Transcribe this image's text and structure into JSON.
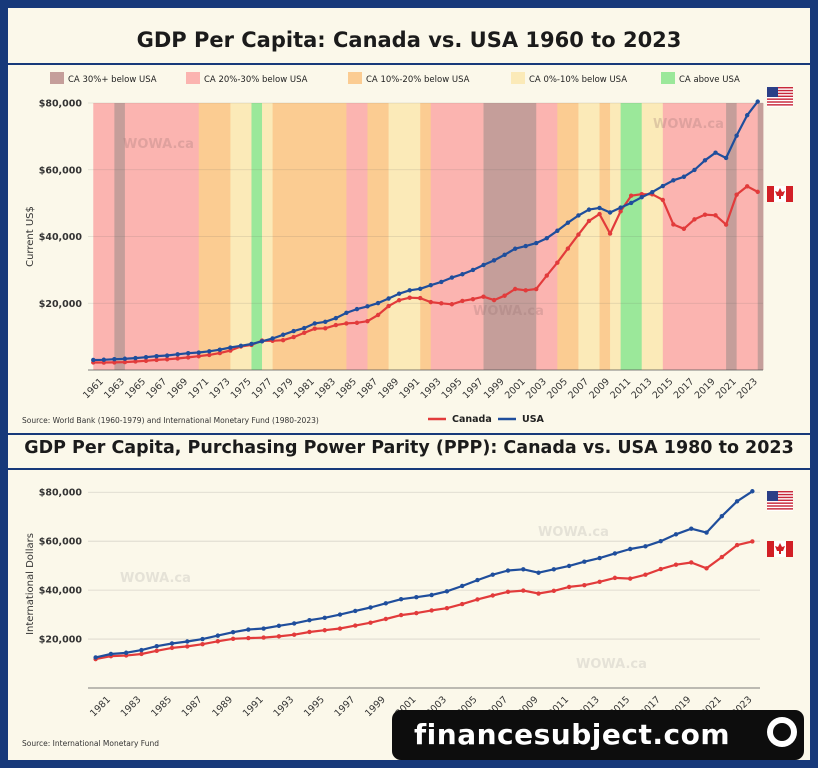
{
  "watermark": "financesubject.com",
  "chart_data": [
    {
      "type": "line",
      "title": "GDP Per Capita: Canada vs. USA 1960 to 2023",
      "ylabel": "Current US$",
      "ylim": [
        0,
        80000
      ],
      "yticks": [
        20000,
        40000,
        60000,
        80000
      ],
      "ytick_labels": [
        "$20,000",
        "$40,000",
        "$60,000",
        "$80,000"
      ],
      "xlim": [
        1960,
        2023
      ],
      "xtick_labels": [
        "1961",
        "1963",
        "1965",
        "1967",
        "1969",
        "1971",
        "1973",
        "1975",
        "1977",
        "1979",
        "1981",
        "1983",
        "1985",
        "1987",
        "1989",
        "1991",
        "1993",
        "1995",
        "1997",
        "1999",
        "2001",
        "2003",
        "2005",
        "2007",
        "2009",
        "2011",
        "2013",
        "2015",
        "2017",
        "2019",
        "2021",
        "2023"
      ],
      "source": "Source: World Bank (1960-1979) and International Monetary Fund (1980-2023)",
      "watermark_text": "WOWA.ca",
      "band_legend": [
        {
          "label": "CA 30%+ below USA",
          "color": "#c59e9a"
        },
        {
          "label": "CA 20%-30% below USA",
          "color": "#fbb4b0"
        },
        {
          "label": "CA 10%-20% below USA",
          "color": "#fbcc92"
        },
        {
          "label": "CA 0%-10% below USA",
          "color": "#fbeab8"
        },
        {
          "label": "CA above USA",
          "color": "#9be89a"
        }
      ],
      "bands": [
        {
          "start": 1960,
          "end": 1962,
          "cat": 1
        },
        {
          "start": 1962,
          "end": 1963,
          "cat": 0
        },
        {
          "start": 1963,
          "end": 1970,
          "cat": 1
        },
        {
          "start": 1970,
          "end": 1973,
          "cat": 2
        },
        {
          "start": 1973,
          "end": 1975,
          "cat": 3
        },
        {
          "start": 1975,
          "end": 1976,
          "cat": 4
        },
        {
          "start": 1976,
          "end": 1977,
          "cat": 3
        },
        {
          "start": 1977,
          "end": 1984,
          "cat": 2
        },
        {
          "start": 1984,
          "end": 1986,
          "cat": 1
        },
        {
          "start": 1986,
          "end": 1988,
          "cat": 2
        },
        {
          "start": 1988,
          "end": 1991,
          "cat": 3
        },
        {
          "start": 1991,
          "end": 1992,
          "cat": 2
        },
        {
          "start": 1992,
          "end": 1997,
          "cat": 1
        },
        {
          "start": 1997,
          "end": 2002,
          "cat": 0
        },
        {
          "start": 2002,
          "end": 2004,
          "cat": 1
        },
        {
          "start": 2004,
          "end": 2006,
          "cat": 2
        },
        {
          "start": 2006,
          "end": 2008,
          "cat": 3
        },
        {
          "start": 2008,
          "end": 2009,
          "cat": 2
        },
        {
          "start": 2009,
          "end": 2010,
          "cat": 3
        },
        {
          "start": 2010,
          "end": 2012,
          "cat": 4
        },
        {
          "start": 2012,
          "end": 2014,
          "cat": 3
        },
        {
          "start": 2014,
          "end": 2020,
          "cat": 1
        },
        {
          "start": 2020,
          "end": 2021,
          "cat": 0
        },
        {
          "start": 2021,
          "end": 2023,
          "cat": 1
        },
        {
          "start": 2023,
          "end": 2023.5,
          "cat": 0
        }
      ],
      "legend": [
        {
          "label": "Canada",
          "color": "#e23b3b"
        },
        {
          "label": "USA",
          "color": "#1f4e9c"
        }
      ],
      "x": [
        1960,
        1961,
        1962,
        1963,
        1964,
        1965,
        1966,
        1967,
        1968,
        1969,
        1970,
        1971,
        1972,
        1973,
        1974,
        1975,
        1976,
        1977,
        1978,
        1979,
        1980,
        1981,
        1982,
        1983,
        1984,
        1985,
        1986,
        1987,
        1988,
        1989,
        1990,
        1991,
        1992,
        1993,
        1994,
        1995,
        1996,
        1997,
        1998,
        1999,
        2000,
        2001,
        2002,
        2003,
        2004,
        2005,
        2006,
        2007,
        2008,
        2009,
        2010,
        2011,
        2012,
        2013,
        2014,
        2015,
        2016,
        2017,
        2018,
        2019,
        2020,
        2021,
        2022,
        2023
      ],
      "series": [
        {
          "name": "Canada",
          "color": "#e23b3b",
          "values": [
            2260,
            2240,
            2270,
            2370,
            2560,
            2760,
            3030,
            3210,
            3460,
            3770,
            4120,
            4520,
            5070,
            5840,
            7040,
            7510,
            8810,
            8750,
            8930,
            9860,
            11130,
            12370,
            12500,
            13450,
            13960,
            14150,
            14630,
            16480,
            19150,
            20900,
            21650,
            21550,
            20340,
            19990,
            19700,
            20700,
            21230,
            21960,
            20940,
            22250,
            24270,
            23870,
            24260,
            28300,
            32140,
            36390,
            40560,
            44660,
            46710,
            40880,
            47560,
            52220,
            52670,
            52640,
            50960,
            43600,
            42320,
            45130,
            46550,
            46350,
            43560,
            52540,
            55030,
            53370
          ]
        },
        {
          "name": "USA",
          "color": "#1f4e9c",
          "values": [
            3010,
            3070,
            3240,
            3370,
            3570,
            3830,
            4150,
            4340,
            4700,
            5030,
            5230,
            5610,
            6090,
            6730,
            7240,
            7800,
            8590,
            9450,
            10560,
            11670,
            12550,
            13950,
            14430,
            15540,
            17120,
            18240,
            19070,
            20040,
            21420,
            22860,
            23890,
            24340,
            25420,
            26390,
            27690,
            28690,
            29970,
            31460,
            32850,
            34510,
            36330,
            37130,
            38020,
            39490,
            41720,
            44120,
            46300,
            48050,
            48570,
            47190,
            48650,
            50070,
            51780,
            53290,
            55120,
            56850,
            57900,
            59930,
            62820,
            65100,
            63530,
            70220,
            76330,
            80410
          ]
        }
      ]
    },
    {
      "type": "line",
      "title": "GDP Per Capita, Purchasing Power Parity (PPP): Canada vs. USA 1980 to 2023",
      "ylabel": "International Dollars",
      "ylim": [
        0,
        85000
      ],
      "yticks": [
        20000,
        40000,
        60000,
        80000
      ],
      "ytick_labels": [
        "$20,000",
        "$40,000",
        "$60,000",
        "$80,000"
      ],
      "xlim": [
        1980,
        2023
      ],
      "xtick_labels": [
        "1981",
        "1983",
        "1985",
        "1987",
        "1989",
        "1991",
        "1993",
        "1995",
        "1997",
        "1999",
        "2001",
        "2003",
        "2005",
        "2007",
        "2009",
        "2011",
        "2013",
        "2015",
        "2017",
        "2019",
        "2021",
        "2023"
      ],
      "source": "Source: International Monetary Fund",
      "watermark_text": "WOWA.ca",
      "x": [
        1980,
        1981,
        1982,
        1983,
        1984,
        1985,
        1986,
        1987,
        1988,
        1989,
        1990,
        1991,
        1992,
        1993,
        1994,
        1995,
        1996,
        1997,
        1998,
        1999,
        2000,
        2001,
        2002,
        2003,
        2004,
        2005,
        2006,
        2007,
        2008,
        2009,
        2010,
        2011,
        2012,
        2013,
        2014,
        2015,
        2016,
        2017,
        2018,
        2019,
        2020,
        2021,
        2022,
        2023
      ],
      "series": [
        {
          "name": "Canada",
          "color": "#e23b3b",
          "values": [
            11800,
            13000,
            13300,
            13900,
            15200,
            16400,
            17000,
            17900,
            19100,
            20100,
            20400,
            20600,
            21100,
            21800,
            22900,
            23600,
            24300,
            25500,
            26700,
            28200,
            29800,
            30600,
            31700,
            32600,
            34300,
            36200,
            37800,
            39300,
            39800,
            38600,
            39700,
            41300,
            42000,
            43400,
            45000,
            44700,
            46300,
            48600,
            50400,
            51300,
            48900,
            53500,
            58400,
            59900
          ]
        },
        {
          "name": "USA",
          "color": "#1f4e9c",
          "values": [
            12500,
            13900,
            14400,
            15500,
            17100,
            18200,
            19000,
            20000,
            21400,
            22800,
            23900,
            24300,
            25400,
            26400,
            27700,
            28700,
            30000,
            31500,
            32900,
            34600,
            36300,
            37100,
            38000,
            39500,
            41700,
            44100,
            46300,
            48000,
            48500,
            47100,
            48500,
            49900,
            51600,
            53100,
            55000,
            56800,
            57900,
            60000,
            62800,
            65100,
            63500,
            70200,
            76300,
            80400
          ]
        }
      ]
    }
  ]
}
